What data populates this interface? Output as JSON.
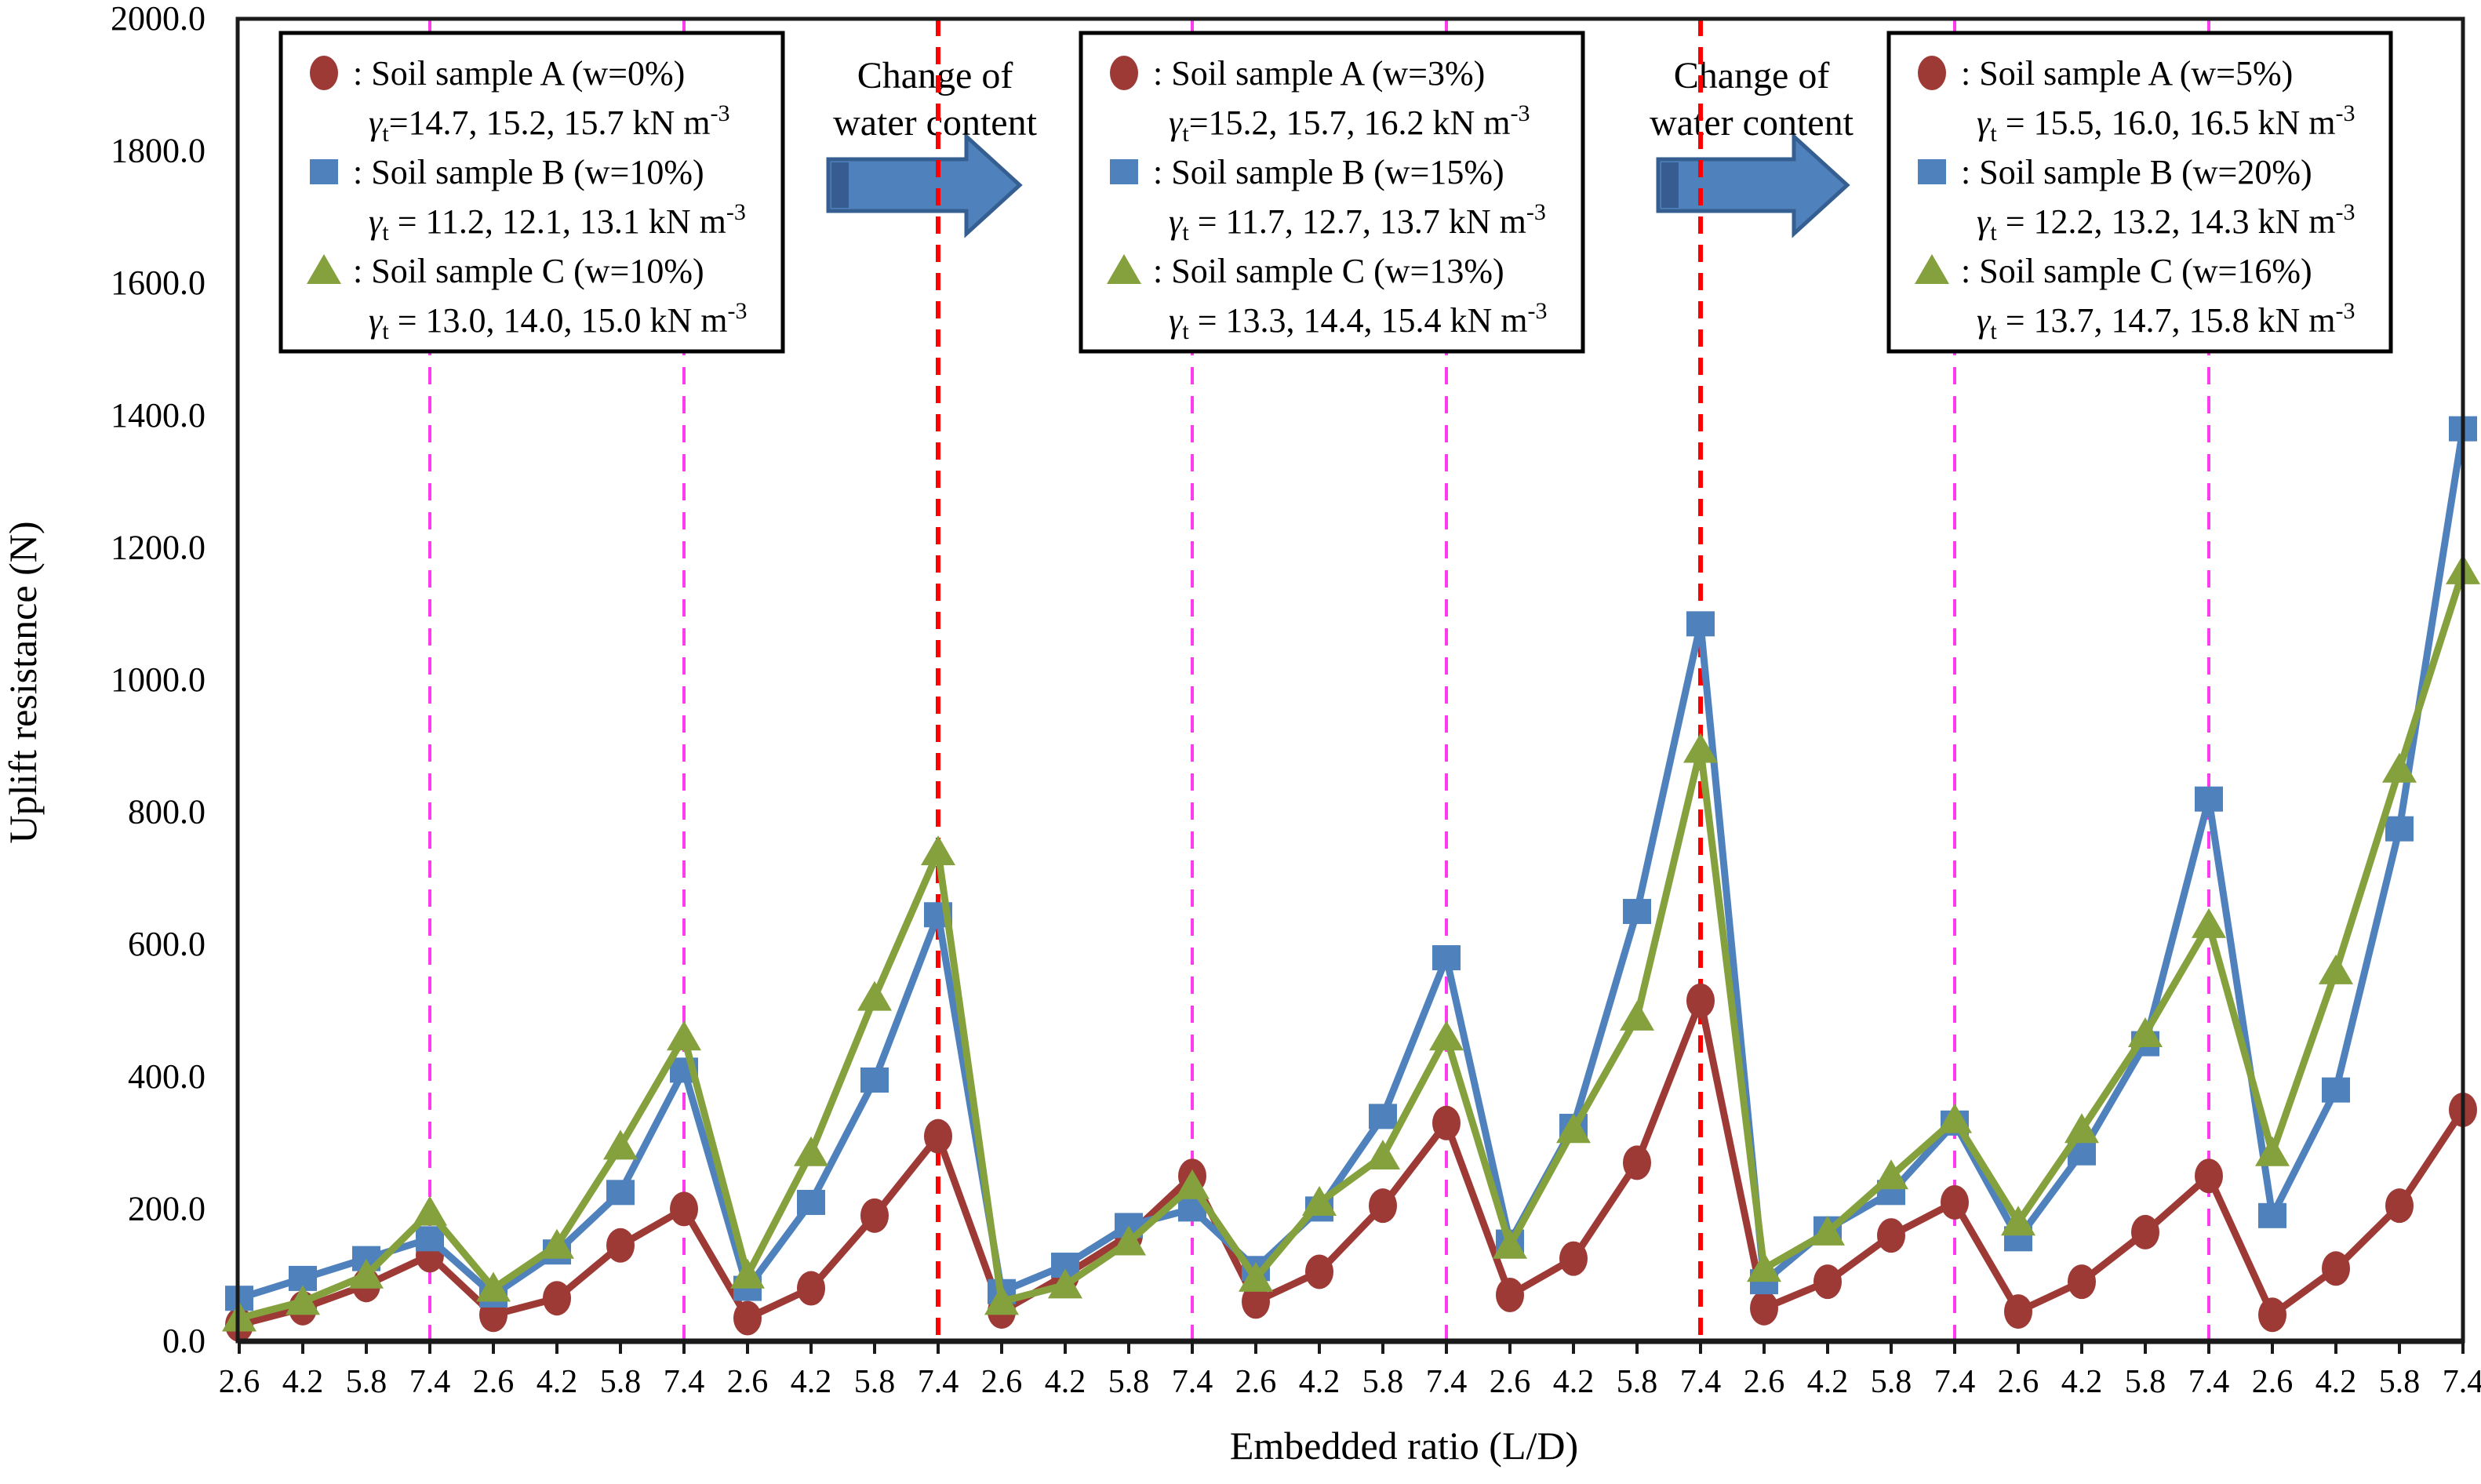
{
  "figure_title": "",
  "y_axis": {
    "title": "Uplift resistance (N)",
    "min": 0,
    "max": 2000,
    "step": 200,
    "tick_labels": [
      "2000.0",
      "1800.0",
      "1600.0",
      "1400.0",
      "1200.0",
      "1000.0",
      "800.0",
      "600.0",
      "400.0",
      "200.0",
      "0.0"
    ]
  },
  "x_axis": {
    "title": "Embedded ratio (L/D)",
    "tick_labels": [
      "2.6",
      "4.2",
      "5.8",
      "7.4",
      "2.6",
      "4.2",
      "5.8",
      "7.4",
      "2.6",
      "4.2",
      "5.8",
      "7.4",
      "2.6",
      "4.2",
      "5.8",
      "7.4",
      "2.6",
      "4.2",
      "5.8",
      "7.4",
      "2.6",
      "4.2",
      "5.8",
      "7.4",
      "2.6",
      "4.2",
      "5.8",
      "7.4",
      "2.6",
      "4.2",
      "5.8",
      "7.4",
      "2.6",
      "4.2",
      "5.8",
      "7.4"
    ]
  },
  "annotations": [
    {
      "line1": "Change of",
      "line2": "water content"
    },
    {
      "line1": "Change of",
      "line2": "water content"
    }
  ],
  "units": {
    "gamma_symbol": "γ",
    "gamma_sub": "t",
    "unit": " kN m",
    "unit_sup": "-3"
  },
  "legend_boxes": [
    {
      "entries": [
        {
          "marker": "circle",
          "label": ": Soil sample A (w=0%)",
          "gamma_values": "=14.7, 15.2, 15.7"
        },
        {
          "marker": "square",
          "label": ": Soil sample B (w=10%)",
          "gamma_values": " = 11.2, 12.1, 13.1"
        },
        {
          "marker": "triangle",
          "label": ": Soil sample C (w=10%)",
          "gamma_values": " = 13.0, 14.0, 15.0"
        }
      ]
    },
    {
      "entries": [
        {
          "marker": "circle",
          "label": ": Soil sample A (w=3%)",
          "gamma_values": "=15.2, 15.7, 16.2"
        },
        {
          "marker": "square",
          "label": ": Soil sample B (w=15%)",
          "gamma_values": " = 11.7, 12.7, 13.7"
        },
        {
          "marker": "triangle",
          "label": ": Soil sample C (w=13%)",
          "gamma_values": " = 13.3, 14.4, 15.4"
        }
      ]
    },
    {
      "entries": [
        {
          "marker": "circle",
          "label": ": Soil sample A (w=5%)",
          "gamma_values": " = 15.5, 16.0, 16.5"
        },
        {
          "marker": "square",
          "label": ": Soil sample B (w=20%)",
          "gamma_values": " = 12.2, 13.2, 14.3"
        },
        {
          "marker": "triangle",
          "label": ": Soil sample C (w=16%)",
          "gamma_values": " = 13.7, 14.7, 15.8"
        }
      ]
    }
  ],
  "colors": {
    "series_a_red": "#9e3a36",
    "series_b_blue": "#4f81bd",
    "series_c_green": "#85a13e",
    "magenta_divider": "#ff3bf0",
    "red_divider": "#fe0000",
    "arrow_fill": "#4f81bd",
    "arrow_edge": "#365f91",
    "arrow_fold": "#31568a",
    "axis_black": "#1a1a1a"
  },
  "chart_data": {
    "type": "line",
    "title": "Uplift resistance vs embedded ratio for three soil samples at increasing water content (three panels)",
    "xlabel": "Embedded ratio (L/D)",
    "ylabel": "Uplift resistance (N)",
    "ylim": [
      0,
      2000
    ],
    "grid": "none",
    "legend_position": "top (three boxes, one per panel)",
    "x_group_pattern": [
      2.6,
      4.2,
      5.8,
      7.4
    ],
    "panels": [
      {
        "water_content": {
          "A": "0%",
          "B": "10%",
          "C": "10%"
        },
        "unit_weights": {
          "A": "14.7, 15.2, 15.7",
          "B": "11.2, 12.1, 13.1",
          "C": "13.0, 14.0, 15.0"
        }
      },
      {
        "water_content": {
          "A": "3%",
          "B": "15%",
          "C": "13%"
        },
        "unit_weights": {
          "A": "15.2, 15.7, 16.2",
          "B": "11.7, 12.7, 13.7",
          "C": "13.3, 14.4, 15.4"
        }
      },
      {
        "water_content": {
          "A": "5%",
          "B": "20%",
          "C": "16%"
        },
        "unit_weights": {
          "A": "15.5, 16.0, 16.5",
          "B": "12.2, 13.2, 14.3",
          "C": "13.7, 14.7, 15.8"
        }
      }
    ],
    "series": [
      {
        "name": "Soil sample A",
        "marker": "circle",
        "color_key": "series_a_red",
        "values": [
          25,
          50,
          85,
          130,
          40,
          65,
          145,
          200,
          35,
          80,
          190,
          310,
          45,
          100,
          160,
          250,
          60,
          105,
          205,
          330,
          70,
          125,
          270,
          515,
          50,
          90,
          160,
          210,
          45,
          90,
          165,
          250,
          40,
          110,
          205,
          350
        ]
      },
      {
        "name": "Soil sample B",
        "marker": "square",
        "color_key": "series_b_blue",
        "values": [
          65,
          95,
          125,
          155,
          70,
          135,
          225,
          410,
          80,
          210,
          395,
          645,
          75,
          115,
          175,
          200,
          110,
          200,
          340,
          580,
          150,
          325,
          650,
          1085,
          90,
          170,
          225,
          330,
          155,
          285,
          450,
          820,
          190,
          380,
          775,
          1380
        ]
      },
      {
        "name": "Soil sample C",
        "marker": "triangle",
        "color_key": "series_c_green",
        "values": [
          35,
          60,
          100,
          195,
          80,
          145,
          295,
          460,
          100,
          285,
          520,
          740,
          60,
          85,
          150,
          235,
          95,
          210,
          280,
          460,
          145,
          320,
          490,
          895,
          110,
          165,
          250,
          335,
          180,
          320,
          465,
          630,
          285,
          560,
          865,
          1165
        ]
      }
    ],
    "separators": {
      "magenta_dashed_at_point_index": [
        3,
        7,
        15,
        19,
        27,
        31
      ],
      "red_dashed_at_point_index": [
        11,
        23
      ]
    }
  }
}
